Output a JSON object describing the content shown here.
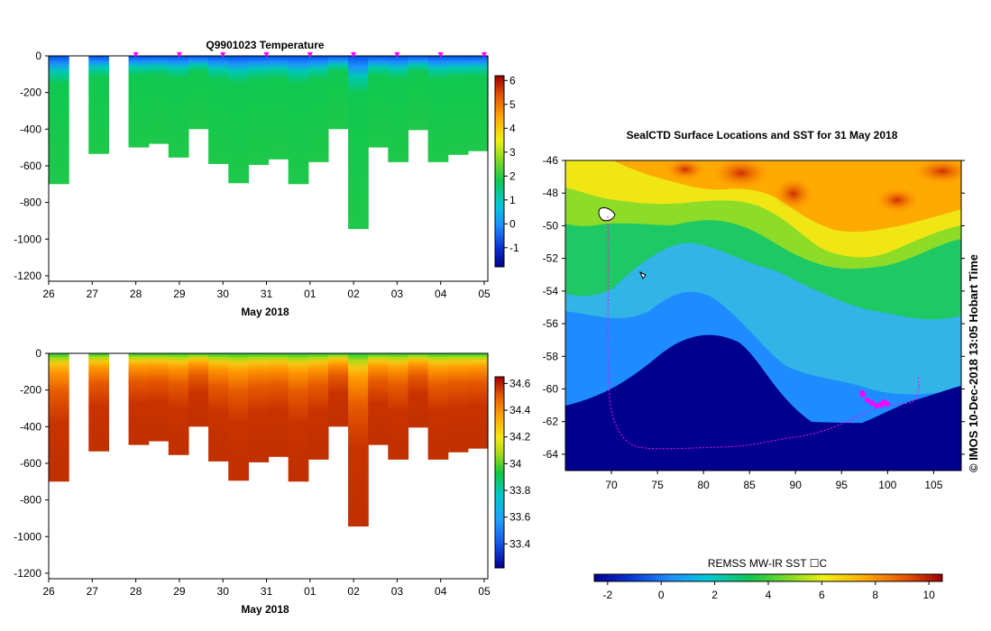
{
  "chart_data": [
    {
      "type": "heatmap",
      "title": "Q9901023  Temperature",
      "xlabel": "May 2018",
      "ylabel": "",
      "x_ticks": [
        "26",
        "27",
        "28",
        "29",
        "30",
        "31",
        "01",
        "02",
        "03",
        "04",
        "05"
      ],
      "y_ticks": [
        0,
        -200,
        -400,
        -600,
        -800,
        -1000,
        -1200
      ],
      "ylim": [
        -1230,
        0
      ],
      "profile_depths": [
        -700,
        null,
        -535,
        null,
        -500,
        -480,
        -555,
        -400,
        -590,
        -695,
        -595,
        -565,
        -700,
        -580,
        -400,
        -945,
        -500,
        -580,
        -405,
        -580,
        -540,
        -520
      ],
      "colorbar": {
        "min": -1.8,
        "max": 6.2,
        "ticks": [
          "6",
          "5",
          "4",
          "3",
          "2",
          "1",
          "0",
          "-1"
        ]
      }
    },
    {
      "type": "heatmap",
      "title": "",
      "xlabel": "May 2018",
      "ylabel": "",
      "x_ticks": [
        "26",
        "27",
        "28",
        "29",
        "30",
        "31",
        "01",
        "02",
        "03",
        "04",
        "05"
      ],
      "y_ticks": [
        0,
        -200,
        -400,
        -600,
        -800,
        -1000,
        -1200
      ],
      "ylim": [
        -1230,
        0
      ],
      "colorbar": {
        "min": 33.22,
        "max": 34.65,
        "ticks": [
          "34.6",
          "34.4",
          "34.2",
          "34",
          "33.8",
          "33.6",
          "33.4"
        ]
      }
    },
    {
      "type": "heatmap",
      "title": "SealCTD Surface Locations and SST for 31 May 2018",
      "x_ticks": [
        "70",
        "75",
        "80",
        "85",
        "90",
        "95",
        "100",
        "105"
      ],
      "y_ticks": [
        "-46",
        "-48",
        "-50",
        "-52",
        "-54",
        "-56",
        "-58",
        "-60",
        "-62",
        "-64"
      ],
      "xlim": [
        65,
        108
      ],
      "ylim": [
        -65,
        -46
      ],
      "colorbar": {
        "label": "REMSS MW-IR SST ☐C",
        "min": -2.5,
        "max": 10.5,
        "ticks": [
          "-2",
          "0",
          "2",
          "4",
          "6",
          "8",
          "10"
        ]
      },
      "side_text": "©  IMOS 10-Dec-2018 13:05 Hobart Time"
    }
  ]
}
